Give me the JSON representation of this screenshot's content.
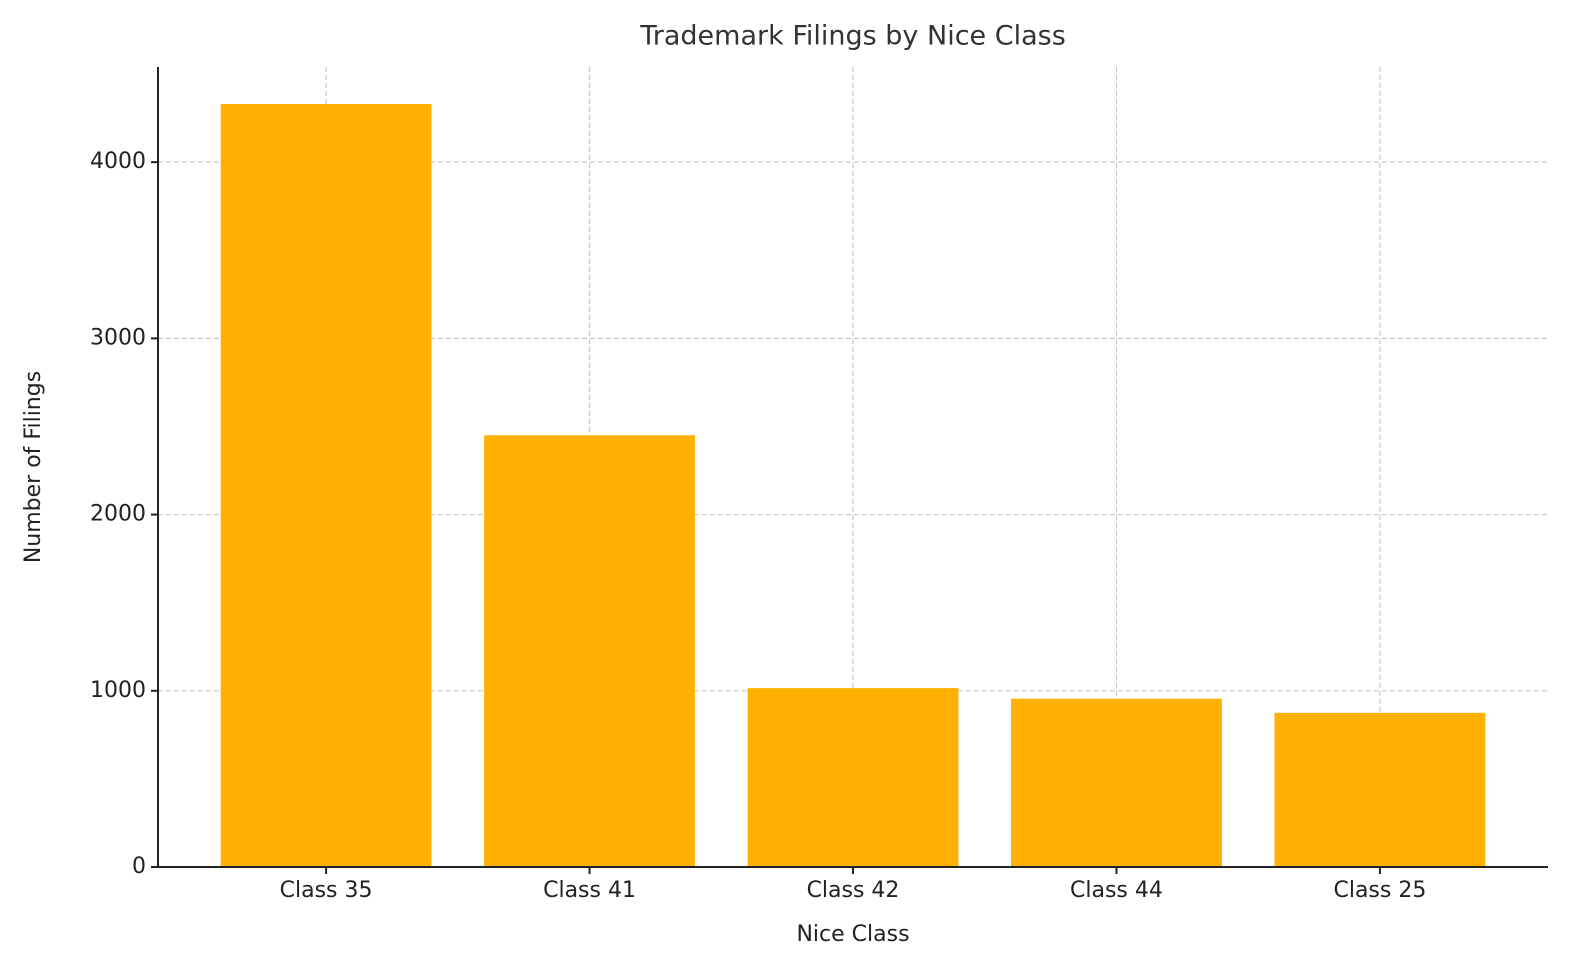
{
  "chart_data": {
    "type": "bar",
    "title": "Trademark Filings by Nice Class",
    "x_label": "Nice Class",
    "y_label": "Number of Filings",
    "categories": [
      "Class 35",
      "Class 41",
      "Class 42",
      "Class 44",
      "Class 25"
    ],
    "values": [
      4330,
      2450,
      1015,
      955,
      875
    ],
    "color": "#ffb000",
    "ylim": [
      0,
      4540
    ],
    "yticks": [
      0,
      1000,
      2000,
      3000,
      4000
    ],
    "grid": true
  }
}
